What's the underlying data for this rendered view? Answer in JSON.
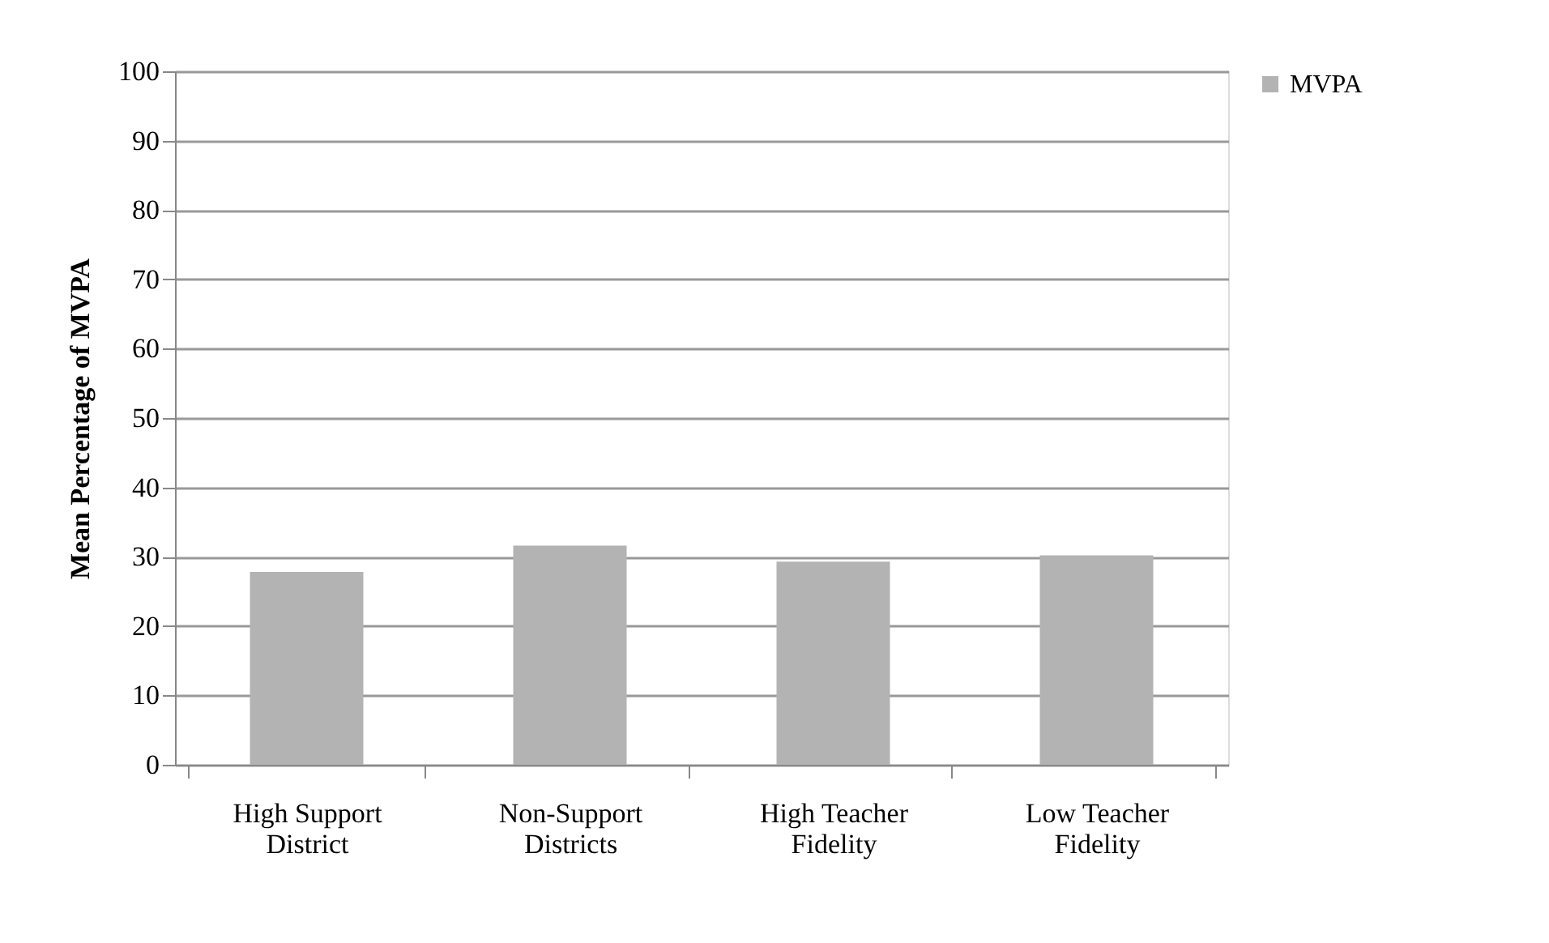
{
  "chart_data": {
    "type": "bar",
    "ylabel": "Mean Percentage of MVPA",
    "categories": [
      "High Support District",
      "Non-Support Districts",
      "High Teacher Fidelity",
      "Low Teacher Fidelity"
    ],
    "series": [
      {
        "name": "MVPA",
        "color": "#b3b3b3",
        "values": [
          27.8,
          31.6,
          29.3,
          30.2
        ]
      }
    ],
    "ylim": [
      0,
      100
    ],
    "yticks": [
      0,
      10,
      20,
      30,
      40,
      50,
      60,
      70,
      80,
      90,
      100
    ],
    "grid": "y",
    "legend": "right"
  }
}
